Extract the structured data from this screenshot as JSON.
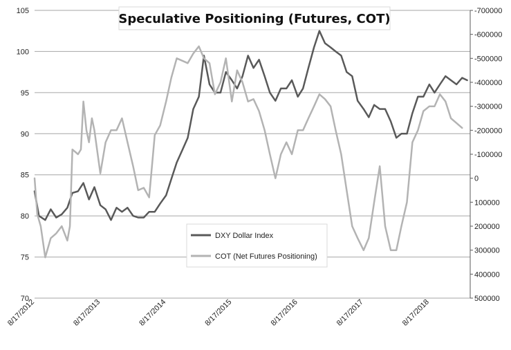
{
  "chart_data": {
    "type": "line",
    "title": "Speculative Positioning (Futures, COT)",
    "x_tick_labels": [
      "8/17/2012",
      "8/17/2013",
      "8/17/2014",
      "8/17/2015",
      "8/17/2016",
      "8/17/2017",
      "8/17/2018"
    ],
    "y_left": {
      "range": [
        70,
        105
      ],
      "ticks": [
        105,
        100,
        95,
        90,
        85,
        80,
        75,
        70
      ],
      "tick_labels": [
        "105",
        "100",
        "95",
        "90",
        "85",
        "80",
        "75",
        "70"
      ]
    },
    "y_right": {
      "range": [
        500000,
        -700000
      ],
      "reversed": true,
      "ticks": [
        -700000,
        -600000,
        -500000,
        -400000,
        -300000,
        -200000,
        -100000,
        0,
        100000,
        200000,
        300000,
        400000,
        500000
      ],
      "tick_labels": [
        "-700000",
        "-600000",
        "-500000",
        "-400000",
        "-300000",
        "-200000",
        "-100000",
        "0",
        "100000",
        "200000",
        "300000",
        "400000",
        "500000"
      ]
    },
    "grid": true,
    "legend_position": "bottom-center",
    "series": [
      {
        "name": "DXY Dollar Index",
        "axis": "left",
        "color": "#595959",
        "points": [
          [
            "2012-08-17",
            83
          ],
          [
            "2012-09-10",
            80
          ],
          [
            "2012-10-15",
            79.5
          ],
          [
            "2012-11-15",
            80.8
          ],
          [
            "2012-12-15",
            79.8
          ],
          [
            "2013-01-15",
            80.2
          ],
          [
            "2013-02-15",
            81
          ],
          [
            "2013-03-15",
            82.8
          ],
          [
            "2013-04-15",
            83
          ],
          [
            "2013-05-15",
            84
          ],
          [
            "2013-06-15",
            82
          ],
          [
            "2013-07-15",
            83.5
          ],
          [
            "2013-08-17",
            81.3
          ],
          [
            "2013-09-15",
            80.8
          ],
          [
            "2013-10-15",
            79.5
          ],
          [
            "2013-11-15",
            81
          ],
          [
            "2013-12-15",
            80.5
          ],
          [
            "2014-01-15",
            81
          ],
          [
            "2014-02-15",
            80
          ],
          [
            "2014-03-15",
            79.8
          ],
          [
            "2014-04-15",
            79.8
          ],
          [
            "2014-05-15",
            80.5
          ],
          [
            "2014-06-15",
            80.5
          ],
          [
            "2014-07-15",
            81.5
          ],
          [
            "2014-08-17",
            82.5
          ],
          [
            "2014-09-15",
            84.5
          ],
          [
            "2014-10-15",
            86.5
          ],
          [
            "2014-11-15",
            88
          ],
          [
            "2014-12-15",
            89.5
          ],
          [
            "2015-01-15",
            93
          ],
          [
            "2015-02-15",
            94.5
          ],
          [
            "2015-03-15",
            99.5
          ],
          [
            "2015-04-15",
            96
          ],
          [
            "2015-05-15",
            95
          ],
          [
            "2015-06-15",
            95
          ],
          [
            "2015-07-15",
            97.5
          ],
          [
            "2015-08-17",
            96.5
          ],
          [
            "2015-09-15",
            95.5
          ],
          [
            "2015-10-15",
            97
          ],
          [
            "2015-11-15",
            99.5
          ],
          [
            "2015-12-15",
            98
          ],
          [
            "2016-01-15",
            99
          ],
          [
            "2016-02-15",
            97
          ],
          [
            "2016-03-15",
            95
          ],
          [
            "2016-04-15",
            94
          ],
          [
            "2016-05-15",
            95.5
          ],
          [
            "2016-06-15",
            95.5
          ],
          [
            "2016-07-15",
            96.5
          ],
          [
            "2016-08-17",
            94.5
          ],
          [
            "2016-09-15",
            95.5
          ],
          [
            "2016-10-15",
            98
          ],
          [
            "2016-11-15",
            100.5
          ],
          [
            "2016-12-15",
            102.5
          ],
          [
            "2017-01-15",
            101
          ],
          [
            "2017-02-15",
            100.5
          ],
          [
            "2017-03-15",
            100
          ],
          [
            "2017-04-15",
            99.5
          ],
          [
            "2017-05-15",
            97.5
          ],
          [
            "2017-06-15",
            97
          ],
          [
            "2017-07-15",
            94
          ],
          [
            "2017-08-17",
            93
          ],
          [
            "2017-09-15",
            92
          ],
          [
            "2017-10-15",
            93.5
          ],
          [
            "2017-11-15",
            93
          ],
          [
            "2017-12-15",
            93
          ],
          [
            "2018-01-15",
            91.5
          ],
          [
            "2018-02-15",
            89.5
          ],
          [
            "2018-03-15",
            90
          ],
          [
            "2018-04-15",
            90
          ],
          [
            "2018-05-15",
            92.5
          ],
          [
            "2018-06-15",
            94.5
          ],
          [
            "2018-07-15",
            94.5
          ],
          [
            "2018-08-17",
            96
          ],
          [
            "2018-09-15",
            95
          ],
          [
            "2018-10-15",
            96
          ],
          [
            "2018-11-15",
            97
          ],
          [
            "2018-12-15",
            96.5
          ],
          [
            "2019-01-15",
            96
          ],
          [
            "2019-02-15",
            96.8
          ],
          [
            "2019-03-15",
            96.5
          ]
        ]
      },
      {
        "name": "COT (Net Futures Positioning)",
        "axis": "right",
        "color": "#b3b3b3",
        "points": [
          [
            "2012-08-17",
            0
          ],
          [
            "2012-09-01",
            150000
          ],
          [
            "2012-09-20",
            200000
          ],
          [
            "2012-10-15",
            330000
          ],
          [
            "2012-11-15",
            250000
          ],
          [
            "2012-12-15",
            230000
          ],
          [
            "2013-01-15",
            200000
          ],
          [
            "2013-02-15",
            260000
          ],
          [
            "2013-03-01",
            200000
          ],
          [
            "2013-03-15",
            -120000
          ],
          [
            "2013-04-15",
            -100000
          ],
          [
            "2013-05-01",
            -120000
          ],
          [
            "2013-05-15",
            -320000
          ],
          [
            "2013-06-01",
            -200000
          ],
          [
            "2013-06-15",
            -150000
          ],
          [
            "2013-07-01",
            -250000
          ],
          [
            "2013-07-15",
            -200000
          ],
          [
            "2013-08-17",
            -20000
          ],
          [
            "2013-09-15",
            -150000
          ],
          [
            "2013-10-15",
            -200000
          ],
          [
            "2013-11-15",
            -200000
          ],
          [
            "2013-12-15",
            -250000
          ],
          [
            "2014-01-15",
            -150000
          ],
          [
            "2014-02-15",
            -50000
          ],
          [
            "2014-03-15",
            50000
          ],
          [
            "2014-04-15",
            40000
          ],
          [
            "2014-05-15",
            80000
          ],
          [
            "2014-06-15",
            -180000
          ],
          [
            "2014-07-15",
            -220000
          ],
          [
            "2014-08-17",
            -320000
          ],
          [
            "2014-09-15",
            -420000
          ],
          [
            "2014-10-15",
            -500000
          ],
          [
            "2014-11-15",
            -490000
          ],
          [
            "2014-12-15",
            -480000
          ],
          [
            "2015-01-15",
            -520000
          ],
          [
            "2015-02-15",
            -550000
          ],
          [
            "2015-03-15",
            -500000
          ],
          [
            "2015-04-15",
            -480000
          ],
          [
            "2015-05-15",
            -350000
          ],
          [
            "2015-06-15",
            -400000
          ],
          [
            "2015-07-15",
            -500000
          ],
          [
            "2015-08-17",
            -320000
          ],
          [
            "2015-09-15",
            -450000
          ],
          [
            "2015-10-15",
            -400000
          ],
          [
            "2015-11-15",
            -320000
          ],
          [
            "2015-12-15",
            -330000
          ],
          [
            "2016-01-15",
            -280000
          ],
          [
            "2016-02-15",
            -200000
          ],
          [
            "2016-03-15",
            -100000
          ],
          [
            "2016-04-15",
            0
          ],
          [
            "2016-05-15",
            -100000
          ],
          [
            "2016-06-15",
            -150000
          ],
          [
            "2016-07-15",
            -100000
          ],
          [
            "2016-08-17",
            -200000
          ],
          [
            "2016-09-15",
            -200000
          ],
          [
            "2016-10-15",
            -250000
          ],
          [
            "2016-11-15",
            -300000
          ],
          [
            "2016-12-15",
            -350000
          ],
          [
            "2017-01-15",
            -330000
          ],
          [
            "2017-02-15",
            -300000
          ],
          [
            "2017-03-15",
            -200000
          ],
          [
            "2017-04-15",
            -100000
          ],
          [
            "2017-05-15",
            50000
          ],
          [
            "2017-06-15",
            200000
          ],
          [
            "2017-07-15",
            250000
          ],
          [
            "2017-08-17",
            300000
          ],
          [
            "2017-09-15",
            250000
          ],
          [
            "2017-10-15",
            100000
          ],
          [
            "2017-11-15",
            -50000
          ],
          [
            "2017-12-15",
            200000
          ],
          [
            "2018-01-15",
            300000
          ],
          [
            "2018-02-15",
            300000
          ],
          [
            "2018-03-15",
            200000
          ],
          [
            "2018-04-15",
            100000
          ],
          [
            "2018-05-15",
            -150000
          ],
          [
            "2018-06-15",
            -200000
          ],
          [
            "2018-07-15",
            -280000
          ],
          [
            "2018-08-17",
            -300000
          ],
          [
            "2018-09-15",
            -300000
          ],
          [
            "2018-10-15",
            -350000
          ],
          [
            "2018-11-15",
            -320000
          ],
          [
            "2018-12-15",
            -250000
          ],
          [
            "2019-01-15",
            -230000
          ],
          [
            "2019-02-15",
            -210000
          ]
        ]
      }
    ]
  }
}
